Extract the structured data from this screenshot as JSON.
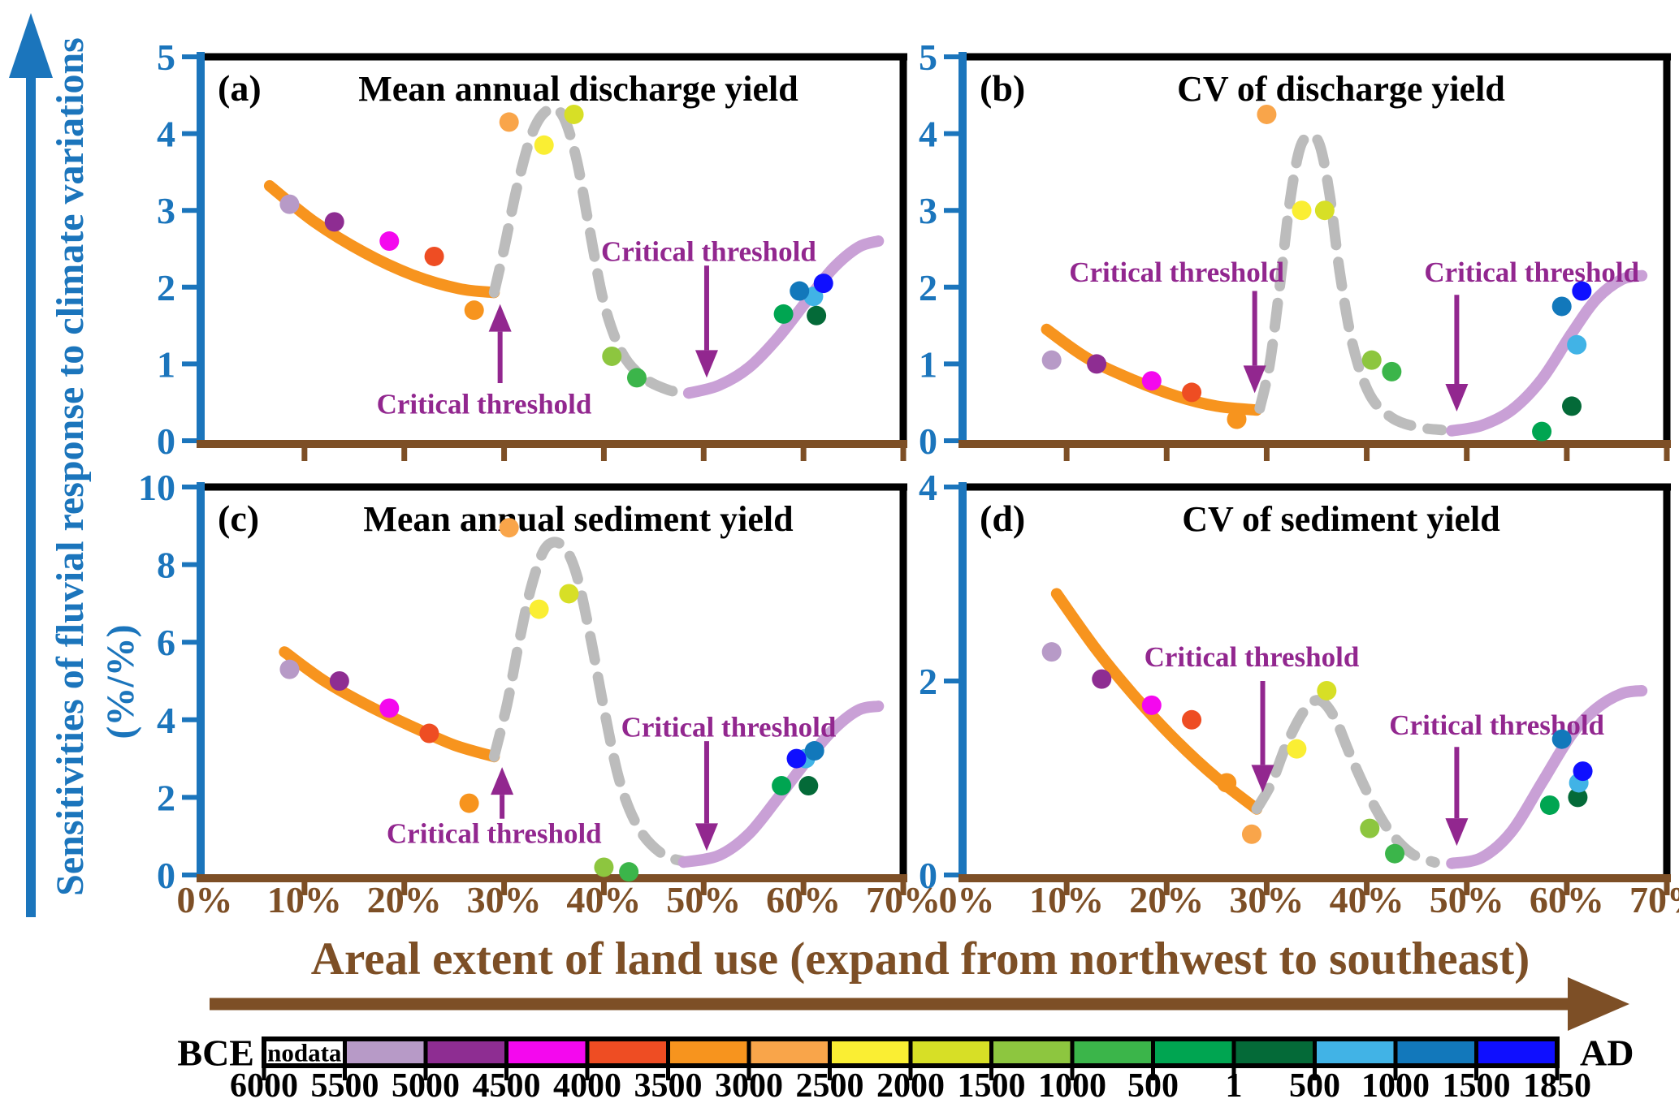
{
  "y_axis": {
    "title": "Sensitivities of fluvial response to climate variations",
    "units": "(%/%)"
  },
  "x_axis": {
    "title": "Areal extent of land use (expand from northwest to southeast)",
    "tick_labels": [
      "0%",
      "10%",
      "20%",
      "30%",
      "40%",
      "50%",
      "60%",
      "70%"
    ]
  },
  "colors": {
    "axis_blue": "#1b75bc",
    "axis_brown": "#7d4f26",
    "annotation_purple": "#92278f",
    "curve_orange": "#f7941e",
    "curve_gray_dashed": "#bcbcbc",
    "curve_lavender": "#c9a0d6",
    "border_black": "#000000"
  },
  "chart_data": {
    "type": "scatter",
    "xlim": [
      0,
      70
    ],
    "xtick_values": [
      0,
      10,
      20,
      30,
      40,
      50,
      60,
      70
    ],
    "x_unit": "percent areal extent of land use",
    "panels": [
      {
        "id": "a",
        "label": "(a)",
        "title": "Mean annual discharge yield",
        "ylim": [
          0,
          5
        ],
        "ytick_values": [
          0,
          1,
          2,
          3,
          4,
          5
        ],
        "points": [
          {
            "era": "5500-5000 BCE",
            "x": 8.5,
            "y": 3.08
          },
          {
            "era": "5000-4500 BCE",
            "x": 13,
            "y": 2.85
          },
          {
            "era": "4500-4000 BCE",
            "x": 18.5,
            "y": 2.6
          },
          {
            "era": "4000-3500 BCE",
            "x": 23,
            "y": 2.4
          },
          {
            "era": "3500-3000 BCE",
            "x": 27,
            "y": 1.7
          },
          {
            "era": "3000-2500 BCE",
            "x": 30.5,
            "y": 4.15
          },
          {
            "era": "2500-2000 BCE",
            "x": 34,
            "y": 3.85
          },
          {
            "era": "2000-1500 BCE",
            "x": 37,
            "y": 4.25
          },
          {
            "era": "1500-1000 BCE",
            "x": 40.8,
            "y": 1.1
          },
          {
            "era": "1000-500 BCE",
            "x": 43.3,
            "y": 0.82
          },
          {
            "era": "500-1 BCE",
            "x": 58,
            "y": 1.65
          },
          {
            "era": "AD 1-500",
            "x": 61.3,
            "y": 1.63
          },
          {
            "era": "AD 500-1000",
            "x": 61,
            "y": 1.88
          },
          {
            "era": "AD 1000-1500",
            "x": 59.6,
            "y": 1.95
          },
          {
            "era": "AD 1500-1850",
            "x": 62,
            "y": 2.05
          }
        ],
        "curves": {
          "pre_threshold": [
            [
              6.5,
              3.32
            ],
            [
              11,
              2.85
            ],
            [
              16,
              2.45
            ],
            [
              21,
              2.15
            ],
            [
              25.5,
              1.98
            ],
            [
              29,
              1.93
            ]
          ],
          "transition": [
            [
              29,
              1.93
            ],
            [
              30,
              2.5
            ],
            [
              31.3,
              3.3
            ],
            [
              32.8,
              4.0
            ],
            [
              34.3,
              4.3
            ],
            [
              35.8,
              4.25
            ],
            [
              37.2,
              3.7
            ],
            [
              38.5,
              2.8
            ],
            [
              40,
              1.8
            ],
            [
              41.8,
              1.15
            ],
            [
              44,
              0.82
            ],
            [
              46.5,
              0.66
            ],
            [
              48.5,
              0.62
            ]
          ],
          "post_threshold": [
            [
              48.5,
              0.62
            ],
            [
              51.5,
              0.72
            ],
            [
              54.5,
              0.95
            ],
            [
              57.5,
              1.35
            ],
            [
              60.5,
              1.85
            ],
            [
              63,
              2.25
            ],
            [
              65.5,
              2.52
            ],
            [
              67.5,
              2.6
            ]
          ]
        },
        "annotations": [
          {
            "text": "Critical threshold",
            "text_x": 28,
            "text_y": 0.48,
            "arrow_x": 29.6,
            "arrow_from": 0.75,
            "arrow_to": 1.78
          },
          {
            "text": "Critical threshold",
            "text_x": 50.5,
            "text_y": 2.47,
            "arrow_x": 50.3,
            "arrow_from": 2.28,
            "arrow_to": 0.82
          }
        ]
      },
      {
        "id": "b",
        "label": "(b)",
        "title": "CV of discharge yield",
        "ylim": [
          0,
          5
        ],
        "ytick_values": [
          0,
          1,
          2,
          3,
          4,
          5
        ],
        "points": [
          {
            "era": "5500-5000 BCE",
            "x": 8.5,
            "y": 1.05
          },
          {
            "era": "5000-4500 BCE",
            "x": 13,
            "y": 1.0
          },
          {
            "era": "4500-4000 BCE",
            "x": 18.5,
            "y": 0.78
          },
          {
            "era": "4000-3500 BCE",
            "x": 22.5,
            "y": 0.63
          },
          {
            "era": "3500-3000 BCE",
            "x": 27,
            "y": 0.28
          },
          {
            "era": "3000-2500 BCE",
            "x": 30,
            "y": 4.25
          },
          {
            "era": "2500-2000 BCE",
            "x": 33.5,
            "y": 3.0
          },
          {
            "era": "2000-1500 BCE",
            "x": 35.8,
            "y": 3.0
          },
          {
            "era": "1500-1000 BCE",
            "x": 40.5,
            "y": 1.05
          },
          {
            "era": "1000-500 BCE",
            "x": 42.5,
            "y": 0.9
          },
          {
            "era": "500-1 BCE",
            "x": 57.5,
            "y": 0.12
          },
          {
            "era": "AD 1-500",
            "x": 60.5,
            "y": 0.45
          },
          {
            "era": "AD 500-1000",
            "x": 61,
            "y": 1.25
          },
          {
            "era": "AD 1000-1500",
            "x": 59.5,
            "y": 1.75
          },
          {
            "era": "AD 1500-1850",
            "x": 61.5,
            "y": 1.95
          }
        ],
        "curves": {
          "pre_threshold": [
            [
              8,
              1.45
            ],
            [
              12,
              1.08
            ],
            [
              16.5,
              0.8
            ],
            [
              21,
              0.58
            ],
            [
              25,
              0.45
            ],
            [
              29,
              0.4
            ]
          ],
          "transition": [
            [
              29.3,
              0.42
            ],
            [
              30.3,
              1.0
            ],
            [
              31.3,
              2.0
            ],
            [
              32.3,
              3.1
            ],
            [
              33.3,
              3.8
            ],
            [
              34.3,
              3.97
            ],
            [
              35.3,
              3.85
            ],
            [
              36.3,
              3.2
            ],
            [
              37.3,
              2.2
            ],
            [
              38.6,
              1.25
            ],
            [
              40.3,
              0.6
            ],
            [
              42.5,
              0.3
            ],
            [
              45,
              0.18
            ],
            [
              47.5,
              0.14
            ]
          ],
          "post_threshold": [
            [
              48.5,
              0.13
            ],
            [
              51.5,
              0.2
            ],
            [
              54.5,
              0.4
            ],
            [
              57.5,
              0.8
            ],
            [
              60.5,
              1.4
            ],
            [
              63,
              1.85
            ],
            [
              65.5,
              2.1
            ],
            [
              67.5,
              2.15
            ]
          ]
        },
        "annotations": [
          {
            "text": "Critical threshold",
            "text_x": 21,
            "text_y": 2.2,
            "arrow_x": 28.8,
            "arrow_from": 1.95,
            "arrow_to": 0.62
          },
          {
            "text": "Critical threshold",
            "text_x": 56.5,
            "text_y": 2.2,
            "arrow_x": 49,
            "arrow_from": 1.9,
            "arrow_to": 0.38
          }
        ]
      },
      {
        "id": "c",
        "label": "(c)",
        "title": "Mean annual sediment yield",
        "ylim": [
          0,
          10
        ],
        "ytick_values": [
          0,
          2,
          4,
          6,
          8,
          10
        ],
        "points": [
          {
            "era": "5500-5000 BCE",
            "x": 8.5,
            "y": 5.3
          },
          {
            "era": "5000-4500 BCE",
            "x": 13.5,
            "y": 5.0
          },
          {
            "era": "4500-4000 BCE",
            "x": 18.5,
            "y": 4.3
          },
          {
            "era": "4000-3500 BCE",
            "x": 22.5,
            "y": 3.65
          },
          {
            "era": "3500-3000 BCE",
            "x": 26.5,
            "y": 1.85
          },
          {
            "era": "3000-2500 BCE",
            "x": 30.5,
            "y": 8.95
          },
          {
            "era": "2500-2000 BCE",
            "x": 33.5,
            "y": 6.85
          },
          {
            "era": "2000-1500 BCE",
            "x": 36.5,
            "y": 7.25
          },
          {
            "era": "1500-1000 BCE",
            "x": 40,
            "y": 0.2
          },
          {
            "era": "1000-500 BCE",
            "x": 42.5,
            "y": 0.08
          },
          {
            "era": "500-1 BCE",
            "x": 57.8,
            "y": 2.3
          },
          {
            "era": "AD 1-500",
            "x": 60.5,
            "y": 2.3
          },
          {
            "era": "AD 500-1000",
            "x": 60.2,
            "y": 3.0
          },
          {
            "era": "AD 1000-1500",
            "x": 61.1,
            "y": 3.2
          },
          {
            "era": "AD 1500-1850",
            "x": 59.3,
            "y": 3.0
          }
        ],
        "curves": {
          "pre_threshold": [
            [
              8,
              5.75
            ],
            [
              12,
              5.0
            ],
            [
              16.5,
              4.35
            ],
            [
              21,
              3.8
            ],
            [
              25,
              3.35
            ],
            [
              29,
              3.05
            ]
          ],
          "transition": [
            [
              29,
              3.05
            ],
            [
              30.3,
              4.4
            ],
            [
              31.5,
              6.0
            ],
            [
              32.8,
              7.5
            ],
            [
              34.2,
              8.45
            ],
            [
              35.8,
              8.5
            ],
            [
              37.2,
              7.8
            ],
            [
              38.6,
              6.2
            ],
            [
              40,
              4.3
            ],
            [
              41.6,
              2.4
            ],
            [
              43.5,
              1.2
            ],
            [
              45.8,
              0.55
            ],
            [
              48,
              0.35
            ]
          ],
          "post_threshold": [
            [
              48,
              0.33
            ],
            [
              51.5,
              0.5
            ],
            [
              54.5,
              1.05
            ],
            [
              57.5,
              2.0
            ],
            [
              60.5,
              3.0
            ],
            [
              63,
              3.75
            ],
            [
              65.5,
              4.25
            ],
            [
              67.5,
              4.35
            ]
          ]
        },
        "annotations": [
          {
            "text": "Critical threshold",
            "text_x": 29,
            "text_y": 1.08,
            "arrow_x": 29.8,
            "arrow_from": 1.45,
            "arrow_to": 2.78
          },
          {
            "text": "Critical threshold",
            "text_x": 52.5,
            "text_y": 3.82,
            "arrow_x": 50.3,
            "arrow_from": 3.45,
            "arrow_to": 0.62
          }
        ]
      },
      {
        "id": "d",
        "label": "(d)",
        "title": "CV of sediment yield",
        "ylim": [
          0,
          4
        ],
        "ytick_values": [
          0,
          2,
          4
        ],
        "points": [
          {
            "era": "5500-5000 BCE",
            "x": 8.5,
            "y": 2.3
          },
          {
            "era": "5000-4500 BCE",
            "x": 13.5,
            "y": 2.02
          },
          {
            "era": "4500-4000 BCE",
            "x": 18.5,
            "y": 1.75
          },
          {
            "era": "4000-3500 BCE",
            "x": 22.5,
            "y": 1.6
          },
          {
            "era": "3500-3000 BCE",
            "x": 26,
            "y": 0.95
          },
          {
            "era": "3000-2500 BCE",
            "x": 28.5,
            "y": 0.42
          },
          {
            "era": "2500-2000 BCE",
            "x": 33,
            "y": 1.3
          },
          {
            "era": "2000-1500 BCE",
            "x": 36,
            "y": 1.9
          },
          {
            "era": "1500-1000 BCE",
            "x": 40.3,
            "y": 0.48
          },
          {
            "era": "1000-500 BCE",
            "x": 42.8,
            "y": 0.22
          },
          {
            "era": "500-1 BCE",
            "x": 58.3,
            "y": 0.72
          },
          {
            "era": "AD 1-500",
            "x": 61.1,
            "y": 0.8
          },
          {
            "era": "AD 500-1000",
            "x": 61.2,
            "y": 0.95
          },
          {
            "era": "AD 1000-1500",
            "x": 59.5,
            "y": 1.4
          },
          {
            "era": "AD 1500-1850",
            "x": 61.6,
            "y": 1.07
          }
        ],
        "curves": {
          "pre_threshold": [
            [
              9,
              2.9
            ],
            [
              13,
              2.32
            ],
            [
              17,
              1.82
            ],
            [
              21,
              1.38
            ],
            [
              25,
              1.0
            ],
            [
              29,
              0.68
            ]
          ],
          "transition": [
            [
              29,
              0.68
            ],
            [
              30.5,
              0.95
            ],
            [
              32,
              1.35
            ],
            [
              33.8,
              1.7
            ],
            [
              35.3,
              1.8
            ],
            [
              36.8,
              1.62
            ],
            [
              38.3,
              1.25
            ],
            [
              40.3,
              0.8
            ],
            [
              42.3,
              0.45
            ],
            [
              44.5,
              0.22
            ],
            [
              46.8,
              0.13
            ]
          ],
          "post_threshold": [
            [
              48.5,
              0.12
            ],
            [
              51.5,
              0.18
            ],
            [
              54.5,
              0.45
            ],
            [
              57.5,
              0.95
            ],
            [
              60.5,
              1.45
            ],
            [
              63,
              1.72
            ],
            [
              65.5,
              1.87
            ],
            [
              67.5,
              1.9
            ]
          ]
        },
        "annotations": [
          {
            "text": "Critical threshold",
            "text_x": 28.5,
            "text_y": 2.25,
            "arrow_x": 29.6,
            "arrow_from": 2.0,
            "arrow_to": 0.85
          },
          {
            "text": "Critical threshold",
            "text_x": 53,
            "text_y": 1.55,
            "arrow_x": 49,
            "arrow_from": 1.32,
            "arrow_to": 0.3
          }
        ]
      }
    ]
  },
  "legend": {
    "left_label": "BCE",
    "right_label": "AD",
    "nodata_label": "nodata",
    "tick_labels": [
      "6000",
      "5500",
      "5000",
      "4500",
      "4000",
      "3500",
      "3000",
      "2500",
      "2000",
      "1500",
      "1000",
      "500",
      "1",
      "500",
      "1000",
      "1500",
      "1850"
    ],
    "segments": [
      {
        "name": "nodata",
        "color": "#ffffff"
      },
      {
        "name": "5500-5000 BCE",
        "color": "#b79ac7"
      },
      {
        "name": "5000-4500 BCE",
        "color": "#8e2d92"
      },
      {
        "name": "4500-4000 BCE",
        "color": "#f408ee"
      },
      {
        "name": "4000-3500 BCE",
        "color": "#ee4d23"
      },
      {
        "name": "3500-3000 BCE",
        "color": "#f7941e"
      },
      {
        "name": "3000-2500 BCE",
        "color": "#f9a54a"
      },
      {
        "name": "2500-2000 BCE",
        "color": "#faee33"
      },
      {
        "name": "2000-1500 BCE",
        "color": "#d7df26"
      },
      {
        "name": "1500-1000 BCE",
        "color": "#8dc63f"
      },
      {
        "name": "1000-500 BCE",
        "color": "#3bb54a"
      },
      {
        "name": "500-1 BCE",
        "color": "#00a551"
      },
      {
        "name": "AD 1-500",
        "color": "#046a38"
      },
      {
        "name": "AD 500-1000",
        "color": "#41b3e6"
      },
      {
        "name": "AD 1000-1500",
        "color": "#1278bb"
      },
      {
        "name": "AD 1500-1850",
        "color": "#0f0fff"
      }
    ]
  }
}
